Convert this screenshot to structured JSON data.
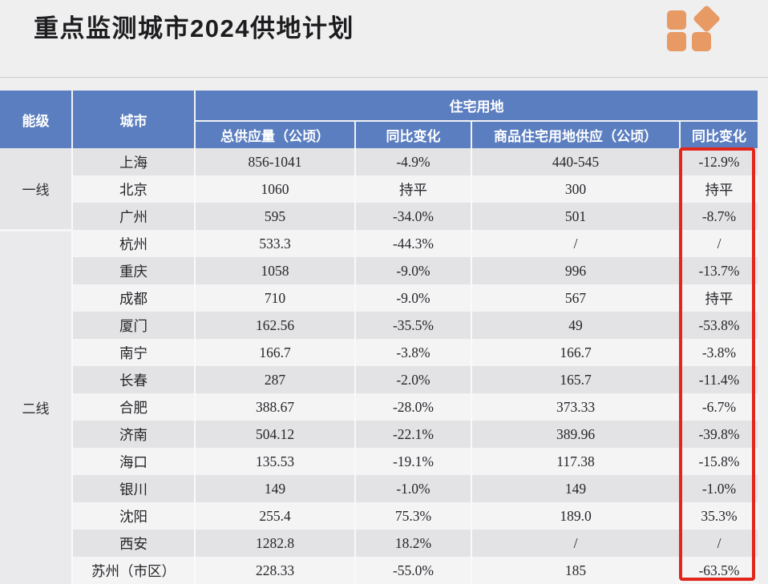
{
  "page": {
    "title": "重点监测城市2024供地计划"
  },
  "logo": {
    "name": "brand-logo-squares-and-diamond",
    "color": "#e89a64"
  },
  "colors": {
    "page_background": "#efeff0",
    "header_blue": "#5b7ec0",
    "row_gray": "#e3e3e5",
    "row_light": "#f4f4f5",
    "highlight_red": "#e2261c",
    "title_text": "#1d1d1f"
  },
  "table": {
    "header": {
      "tier": "能级",
      "city": "城市",
      "group": "住宅用地",
      "cols": [
        "总供应量（公顷）",
        "同比变化",
        "商品住宅用地供应（公顷）",
        "同比变化"
      ]
    },
    "tiers": [
      {
        "label": "一线",
        "rows": 3
      },
      {
        "label": "二线",
        "rows": 13
      }
    ],
    "rows": [
      {
        "city": "上海",
        "total": "856-1041",
        "yoy": "-4.9%",
        "commodity": "440-545",
        "yoy2": "-12.9%"
      },
      {
        "city": "北京",
        "total": "1060",
        "yoy": "持平",
        "commodity": "300",
        "yoy2": "持平"
      },
      {
        "city": "广州",
        "total": "595",
        "yoy": "-34.0%",
        "commodity": "501",
        "yoy2": "-8.7%"
      },
      {
        "city": "杭州",
        "total": "533.3",
        "yoy": "-44.3%",
        "commodity": "/",
        "yoy2": "/"
      },
      {
        "city": "重庆",
        "total": "1058",
        "yoy": "-9.0%",
        "commodity": "996",
        "yoy2": "-13.7%"
      },
      {
        "city": "成都",
        "total": "710",
        "yoy": "-9.0%",
        "commodity": "567",
        "yoy2": "持平"
      },
      {
        "city": "厦门",
        "total": "162.56",
        "yoy": "-35.5%",
        "commodity": "49",
        "yoy2": "-53.8%"
      },
      {
        "city": "南宁",
        "total": "166.7",
        "yoy": "-3.8%",
        "commodity": "166.7",
        "yoy2": "-3.8%"
      },
      {
        "city": "长春",
        "total": "287",
        "yoy": "-2.0%",
        "commodity": "165.7",
        "yoy2": "-11.4%"
      },
      {
        "city": "合肥",
        "total": "388.67",
        "yoy": "-28.0%",
        "commodity": "373.33",
        "yoy2": "-6.7%"
      },
      {
        "city": "济南",
        "total": "504.12",
        "yoy": "-22.1%",
        "commodity": "389.96",
        "yoy2": "-39.8%"
      },
      {
        "city": "海口",
        "total": "135.53",
        "yoy": "-19.1%",
        "commodity": "117.38",
        "yoy2": "-15.8%"
      },
      {
        "city": "银川",
        "total": "149",
        "yoy": "-1.0%",
        "commodity": "149",
        "yoy2": "-1.0%"
      },
      {
        "city": "沈阳",
        "total": "255.4",
        "yoy": "75.3%",
        "commodity": "189.0",
        "yoy2": "35.3%"
      },
      {
        "city": "西安",
        "total": "1282.8",
        "yoy": "18.2%",
        "commodity": "/",
        "yoy2": "/"
      },
      {
        "city": "苏州（市区）",
        "total": "228.33",
        "yoy": "-55.0%",
        "commodity": "185",
        "yoy2": "-63.5%"
      }
    ],
    "highlight_color": "#e2261c"
  }
}
